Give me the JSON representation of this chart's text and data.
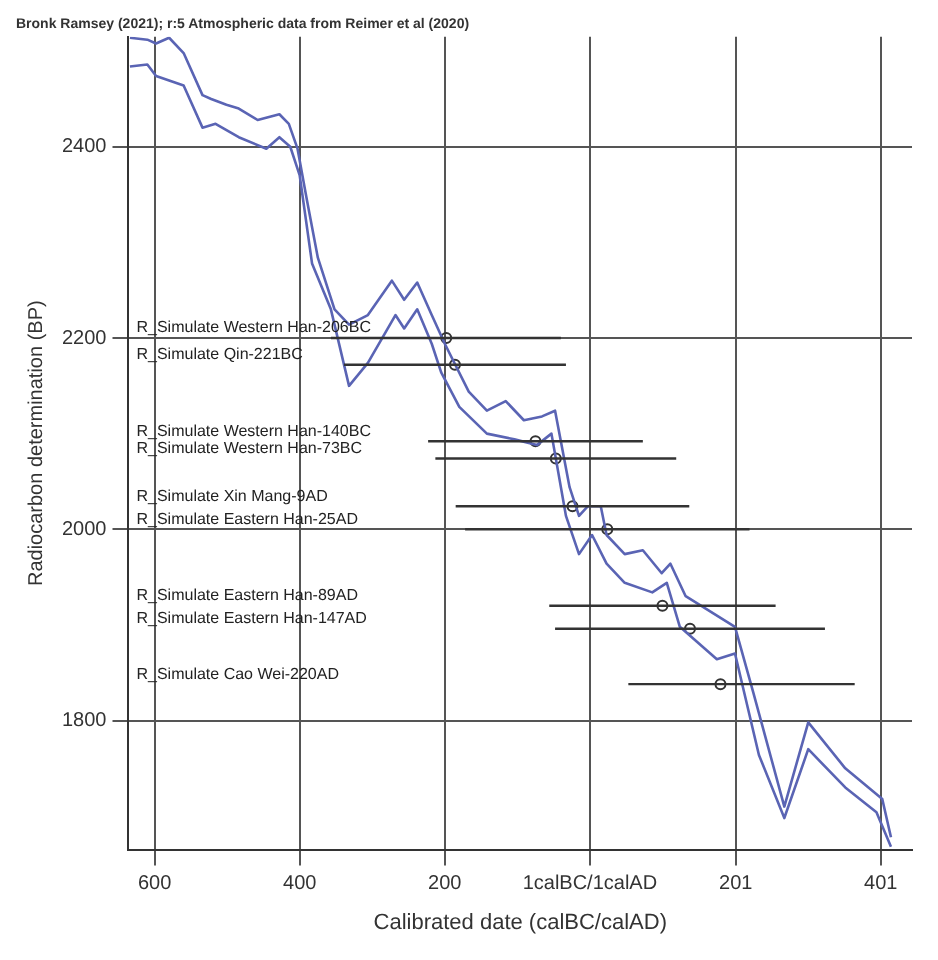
{
  "chart_data": {
    "type": "line",
    "title": "Bronk Ramsey (2021); r:5 Atmospheric data from Reimer et al (2020)",
    "xlabel": "Calibrated date (calBC/calAD)",
    "ylabel": "Radiocarbon determination (BP)",
    "xlim": [
      -636,
      444
    ],
    "ylim": [
      1665,
      2515
    ],
    "xticks": [
      {
        "value": -600,
        "label": "600"
      },
      {
        "value": -400,
        "label": "400"
      },
      {
        "value": -200,
        "label": "200"
      },
      {
        "value": 0,
        "label": "1calBC/1calAD"
      },
      {
        "value": 201,
        "label": "201"
      },
      {
        "value": 401,
        "label": "401"
      }
    ],
    "yticks": [
      1800,
      2000,
      2200,
      2400
    ],
    "grid": true,
    "legend": false,
    "series": [
      {
        "type": "line",
        "color": "#5a64b4",
        "x": [
          -634,
          -610,
          -598,
          -580,
          -560,
          -534,
          -522,
          -501,
          -484,
          -458,
          -428,
          -415,
          -403,
          -390,
          -375,
          -352,
          -332,
          -306,
          -273,
          -256,
          -238,
          -218,
          -200,
          -167,
          -142,
          -116,
          -91,
          -66,
          -48,
          -28,
          -15,
          -3,
          15,
          23,
          48,
          73,
          99,
          111,
          132,
          200,
          225,
          268,
          301,
          352,
          403,
          415
        ],
        "values": [
          2514,
          2512,
          2508,
          2514,
          2498,
          2454,
          2450,
          2444,
          2440,
          2428,
          2434,
          2424,
          2398,
          2344,
          2284,
          2230,
          2214,
          2224,
          2260,
          2240,
          2258,
          2224,
          2194,
          2144,
          2124,
          2134,
          2114,
          2118,
          2124,
          2044,
          2014,
          2024,
          2024,
          1994,
          1974,
          1978,
          1954,
          1964,
          1930,
          1898,
          1830,
          1710,
          1798,
          1750,
          1718,
          1678
        ]
      },
      {
        "type": "line",
        "color": "#5a64b4",
        "x": [
          -634,
          -610,
          -598,
          -560,
          -534,
          -516,
          -484,
          -446,
          -428,
          -413,
          -400,
          -383,
          -357,
          -332,
          -306,
          -268,
          -256,
          -238,
          -218,
          -205,
          -180,
          -142,
          -104,
          -73,
          -53,
          -33,
          -15,
          3,
          23,
          48,
          86,
          106,
          124,
          175,
          200,
          233,
          268,
          301,
          352,
          395,
          415
        ],
        "values": [
          2484,
          2486,
          2474,
          2464,
          2420,
          2424,
          2410,
          2398,
          2410,
          2400,
          2370,
          2278,
          2230,
          2150,
          2174,
          2224,
          2210,
          2230,
          2194,
          2164,
          2128,
          2100,
          2094,
          2088,
          2100,
          2014,
          1974,
          1994,
          1964,
          1944,
          1934,
          1944,
          1898,
          1864,
          1870,
          1764,
          1698,
          1770,
          1730,
          1704,
          1668
        ]
      },
      {
        "type": "scatter",
        "color": "#333333",
        "marker": "circle",
        "x": [
          -198,
          -186,
          -75,
          -47,
          -24,
          24,
          100,
          138,
          180
        ],
        "values": [
          2200,
          2172,
          2092,
          2074,
          2024,
          2000,
          1920,
          1896,
          1838
        ],
        "xerrors": [
          [
            -357,
            -40
          ],
          [
            -339,
            -33
          ],
          [
            -223,
            73
          ],
          [
            -213,
            119
          ],
          [
            -185,
            137
          ],
          [
            -172,
            220
          ],
          [
            -56,
            256
          ],
          [
            -48,
            324
          ],
          [
            53,
            365
          ]
        ]
      }
    ],
    "annotations": [
      "R_Simulate Western Han-206BC",
      "R_Simulate Qin-221BC",
      "R_Simulate Western Han-140BC",
      "R_Simulate Western Han-73BC",
      "R_Simulate Xin Mang-9AD",
      "R_Simulate Eastern Han-25AD",
      "R_Simulate Eastern Han-89AD",
      "R_Simulate Eastern Han-147AD",
      "R_Simulate Cao Wei-220AD"
    ]
  }
}
